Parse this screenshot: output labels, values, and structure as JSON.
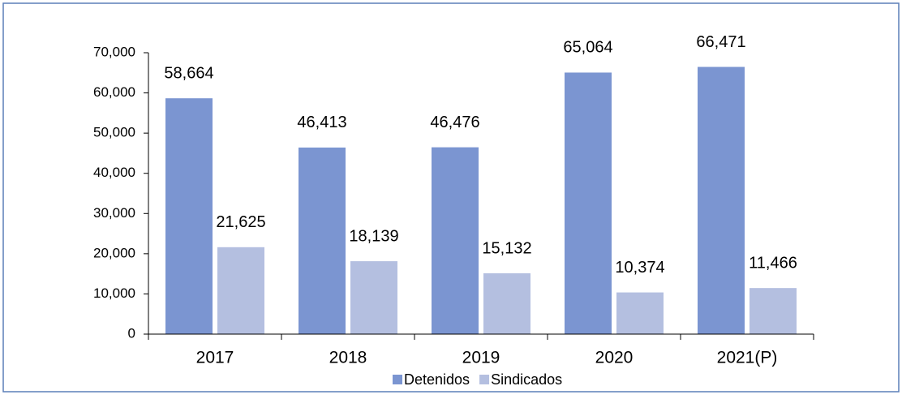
{
  "chart_data": {
    "type": "bar",
    "categories": [
      "2017",
      "2018",
      "2019",
      "2020",
      "2021(P)"
    ],
    "series": [
      {
        "name": "Detenidos",
        "color": "#7b95d1",
        "values": [
          58664,
          46413,
          46476,
          65064,
          66471
        ],
        "value_labels": [
          "58,664",
          "46,413",
          "46,476",
          "65,064",
          "66,471"
        ]
      },
      {
        "name": "Sindicados",
        "color": "#b4bfe0",
        "values": [
          21625,
          18139,
          15132,
          10374,
          11466
        ],
        "value_labels": [
          "21,625",
          "18,139",
          "15,132",
          "10,374",
          "11,466"
        ]
      }
    ],
    "ylim": [
      0,
      70000
    ],
    "yticks": [
      0,
      {
        "value": 10000,
        "label": "10,000"
      },
      {
        "value": 20000,
        "label": "20,000"
      },
      {
        "value": 30000,
        "label": "30,000"
      },
      {
        "value": 40000,
        "label": "40,000"
      },
      {
        "value": 50000,
        "label": "50,000"
      },
      {
        "value": 60000,
        "label": "60,000"
      },
      {
        "value": 70000,
        "label": "70,000"
      }
    ],
    "legend": "bottom"
  }
}
